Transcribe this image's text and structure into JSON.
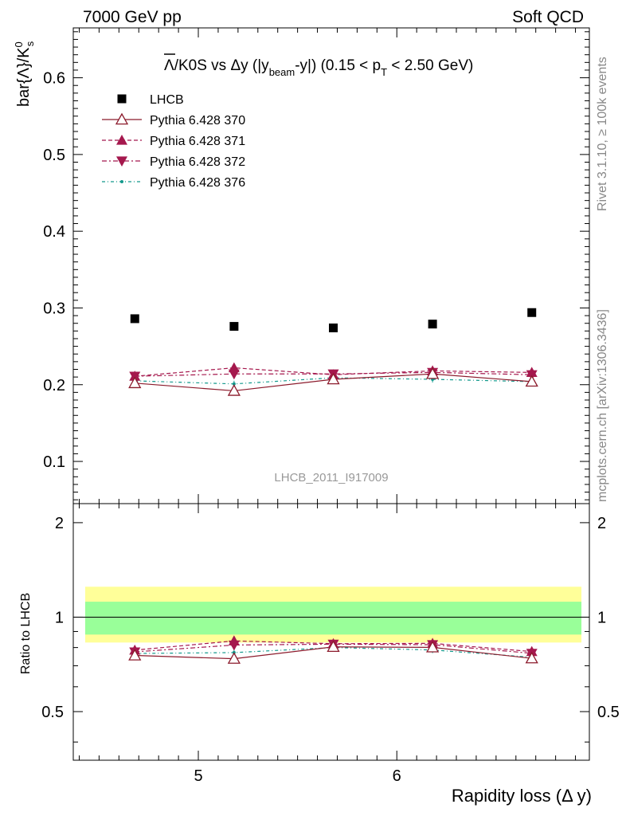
{
  "header": {
    "left": "7000 GeV pp",
    "right": "Soft QCD"
  },
  "side_labels": {
    "rivet": "Rivet 3.1.10, ≥ 100k events",
    "mcplots": "mcplots.cern.ch [arXiv:1306.3436]"
  },
  "title": {
    "lambda_symbol": "Λ",
    "part1": "/K0S vs Δy (|y",
    "sub_beam": "beam",
    "part2": "-y|) (0.15 < p",
    "sub_T": "T",
    "part3": " < 2.50 GeV)"
  },
  "analysis_id": "LHCB_2011_I917009",
  "ylabel_main": {
    "text": "bar{Λ}/K",
    "sup": "0",
    "sub": "s"
  },
  "ylabel_ratio": "Ratio to LHCB",
  "xlabel": "Rapidity loss (Δ y)",
  "legend": [
    {
      "label": "LHCB",
      "color": "#000000",
      "marker": "square",
      "dash": ""
    },
    {
      "label": "Pythia 6.428 370",
      "color": "#8b1a2b",
      "marker": "triangle-up-open",
      "dash": ""
    },
    {
      "label": "Pythia 6.428 371",
      "color": "#a5184d",
      "marker": "triangle-up",
      "dash": "5,3"
    },
    {
      "label": "Pythia 6.428 372",
      "color": "#a5184d",
      "marker": "triangle-down",
      "dash": "6,3,2,3"
    },
    {
      "label": "Pythia 6.428 376",
      "color": "#13998c",
      "marker": "dot",
      "dash": "4,3,1,3"
    }
  ],
  "chart_data": {
    "type": "scatter",
    "x": [
      4.68,
      5.18,
      5.68,
      6.18,
      6.68
    ],
    "xlim": [
      4.37,
      6.97
    ],
    "x_ticks": [
      5,
      6
    ],
    "main": {
      "ylim": [
        0.045,
        0.665
      ],
      "y_ticks": [
        0.1,
        0.2,
        0.3,
        0.4,
        0.5,
        0.6
      ],
      "series": [
        {
          "name": "LHCB",
          "values": [
            0.286,
            0.276,
            0.274,
            0.279,
            0.294
          ]
        },
        {
          "name": "Pythia 6.428 370",
          "values": [
            0.202,
            0.192,
            0.207,
            0.214,
            0.204
          ]
        },
        {
          "name": "Pythia 6.428 371",
          "values": [
            0.211,
            0.222,
            0.213,
            0.218,
            0.216
          ]
        },
        {
          "name": "Pythia 6.428 372",
          "values": [
            0.211,
            0.214,
            0.214,
            0.216,
            0.213
          ]
        },
        {
          "name": "Pythia 6.428 376",
          "values": [
            0.205,
            0.201,
            0.209,
            0.207,
            0.204
          ]
        }
      ]
    },
    "ratio": {
      "ylim": [
        0.35,
        2.3
      ],
      "y_ticks": [
        0.5,
        1,
        2
      ],
      "band_green": [
        0.88,
        1.12
      ],
      "band_yellow": [
        0.83,
        1.25
      ],
      "series": [
        {
          "name": "Pythia 6.428 370",
          "values": [
            0.755,
            0.737,
            0.804,
            0.801,
            0.739
          ]
        },
        {
          "name": "Pythia 6.428 371",
          "values": [
            0.785,
            0.84,
            0.823,
            0.825,
            0.777
          ]
        },
        {
          "name": "Pythia 6.428 372",
          "values": [
            0.775,
            0.815,
            0.82,
            0.817,
            0.767
          ]
        },
        {
          "name": "Pythia 6.428 376",
          "values": [
            0.766,
            0.771,
            0.8,
            0.786,
            0.745
          ]
        }
      ]
    }
  }
}
